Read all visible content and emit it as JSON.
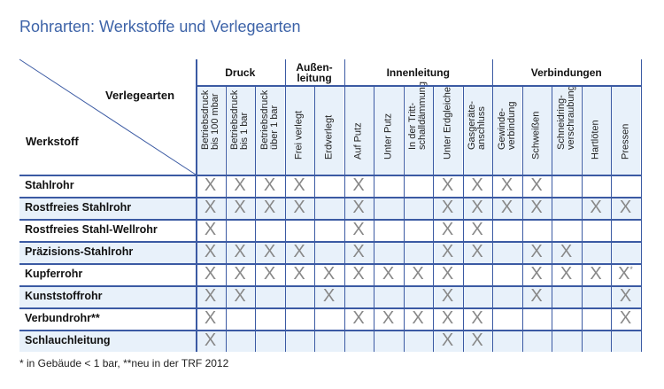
{
  "title": "Rohrarten: Werkstoffe und Verlegearten",
  "corner": {
    "top_label": "Verlegearten",
    "bottom_label": "Werkstoff"
  },
  "groups": [
    {
      "label": "Druck",
      "span": 3
    },
    {
      "label": "Außen-\nleitung",
      "span": 2
    },
    {
      "label": "Innenleitung",
      "span": 5
    },
    {
      "label": "Verbindungen",
      "span": 5
    }
  ],
  "columns": [
    "Betriebsdruck\nbis 100 mbar",
    "Betriebsdruck\nbis 1 bar",
    "Betriebsdruck\nüber 1 bar",
    "Frei verlegt",
    "Erdverlegt",
    "Auf Putz",
    "Unter Putz",
    "In der Tritt-\nschalldämmung",
    "Unter Erdgleiche",
    "Gasgeräte-\nanschluss",
    "Gewinde-\nverbindung",
    "Schweißen",
    "Schneidring-\nverschraubung",
    "Hartlöten",
    "Pressen"
  ],
  "mark": "X",
  "rows": [
    {
      "label": "Stahlrohr",
      "cells": [
        "X",
        "X",
        "X",
        "X",
        "",
        "X",
        "",
        "",
        "X",
        "X",
        "X",
        "X",
        "",
        "",
        ""
      ]
    },
    {
      "label": "Rostfreies Stahlrohr",
      "cells": [
        "X",
        "X",
        "X",
        "X",
        "",
        "X",
        "",
        "",
        "X",
        "X",
        "X",
        "X",
        "",
        "X",
        "X"
      ]
    },
    {
      "label": "Rostfreies Stahl-Wellrohr",
      "cells": [
        "X",
        "",
        "",
        "",
        "",
        "X",
        "",
        "",
        "X",
        "X",
        "",
        "",
        "",
        "",
        ""
      ]
    },
    {
      "label": "Präzisions-Stahlrohr",
      "cells": [
        "X",
        "X",
        "X",
        "X",
        "",
        "X",
        "",
        "",
        "X",
        "X",
        "",
        "X",
        "X",
        "",
        ""
      ]
    },
    {
      "label": "Kupferrohr",
      "cells": [
        "X",
        "X",
        "X",
        "X",
        "X",
        "X",
        "X",
        "X",
        "X",
        "",
        "",
        "X",
        "X",
        "X",
        "X*"
      ]
    },
    {
      "label": "Kunststoffrohr",
      "cells": [
        "X",
        "X",
        "",
        "",
        "X",
        "",
        "",
        "",
        "X",
        "",
        "",
        "X",
        "",
        "",
        "X"
      ]
    },
    {
      "label": "Verbundrohr**",
      "cells": [
        "X",
        "",
        "",
        "",
        "",
        "X",
        "X",
        "X",
        "X",
        "X",
        "",
        "",
        "",
        "",
        "X"
      ]
    },
    {
      "label": "Schlauchleitung",
      "cells": [
        "X",
        "",
        "",
        "",
        "",
        "",
        "",
        "",
        "X",
        "X",
        "",
        "",
        "",
        "",
        ""
      ]
    }
  ],
  "footnote": "* in Gebäude < 1 bar, **neu in der TRF 2012",
  "colors": {
    "grid": "#3b5aa3",
    "title": "#3d63a8",
    "row_alt": "#e8f1fa",
    "mark": "#888888"
  }
}
